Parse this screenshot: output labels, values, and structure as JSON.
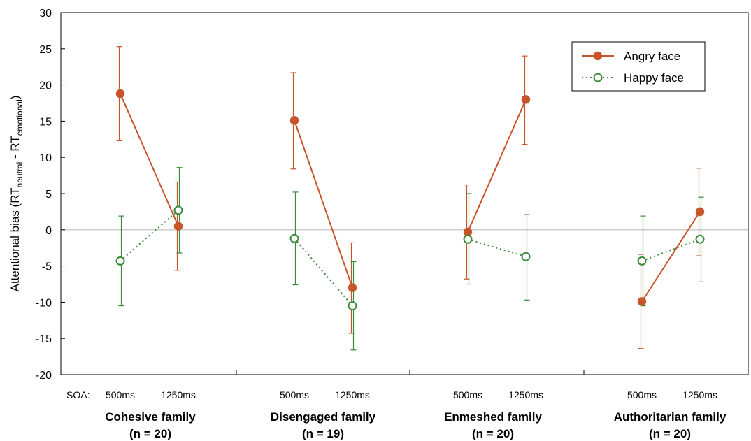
{
  "chart_data": {
    "type": "line",
    "ylabel": {
      "main": "Attentional bias (RT",
      "sub1": "neutral",
      "mid": " - RT",
      "sub2": "emotional",
      "end": ")"
    },
    "ylim": [
      -20,
      30
    ],
    "yticks": [
      -20,
      -15,
      -10,
      -5,
      0,
      5,
      10,
      15,
      20,
      25,
      30
    ],
    "soa_label": "SOA:",
    "groups": [
      {
        "name": "Cohesive family",
        "n": "(n = 20)"
      },
      {
        "name": "Disengaged family",
        "n": "(n = 19)"
      },
      {
        "name": "Enmeshed family",
        "n": "(n = 20)"
      },
      {
        "name": "Authoritarian family",
        "n": "(n = 20)"
      }
    ],
    "conditions": [
      "500ms",
      "1250ms"
    ],
    "series": [
      {
        "name": "Angry face",
        "color": "#c8552a",
        "marker": "filled-circle",
        "line": "solid",
        "values": [
          [
            18.8,
            0.5
          ],
          [
            15.1,
            -8.0
          ],
          [
            -0.3,
            18.0
          ],
          [
            -9.9,
            2.5
          ]
        ],
        "err_low": [
          [
            12.3,
            -5.6
          ],
          [
            8.4,
            -14.3
          ],
          [
            -6.8,
            11.8
          ],
          [
            -16.4,
            -3.6
          ]
        ],
        "err_high": [
          [
            25.3,
            6.6
          ],
          [
            21.7,
            -1.8
          ],
          [
            6.2,
            24.0
          ],
          [
            -3.4,
            8.5
          ]
        ]
      },
      {
        "name": "Happy face",
        "color": "#3a8a3a",
        "marker": "open-circle",
        "line": "dotted",
        "values": [
          [
            -4.3,
            2.7
          ],
          [
            -1.2,
            -10.5
          ],
          [
            -1.3,
            -3.7
          ],
          [
            -4.3,
            -1.3
          ]
        ],
        "err_low": [
          [
            -10.5,
            -3.2
          ],
          [
            -7.6,
            -16.6
          ],
          [
            -7.5,
            -9.7
          ],
          [
            -10.5,
            -7.2
          ]
        ],
        "err_high": [
          [
            1.9,
            8.6
          ],
          [
            5.2,
            -4.4
          ],
          [
            5.0,
            2.1
          ],
          [
            1.9,
            4.5
          ]
        ]
      }
    ],
    "legend_position": "top-right",
    "zero_reference_line": true
  }
}
